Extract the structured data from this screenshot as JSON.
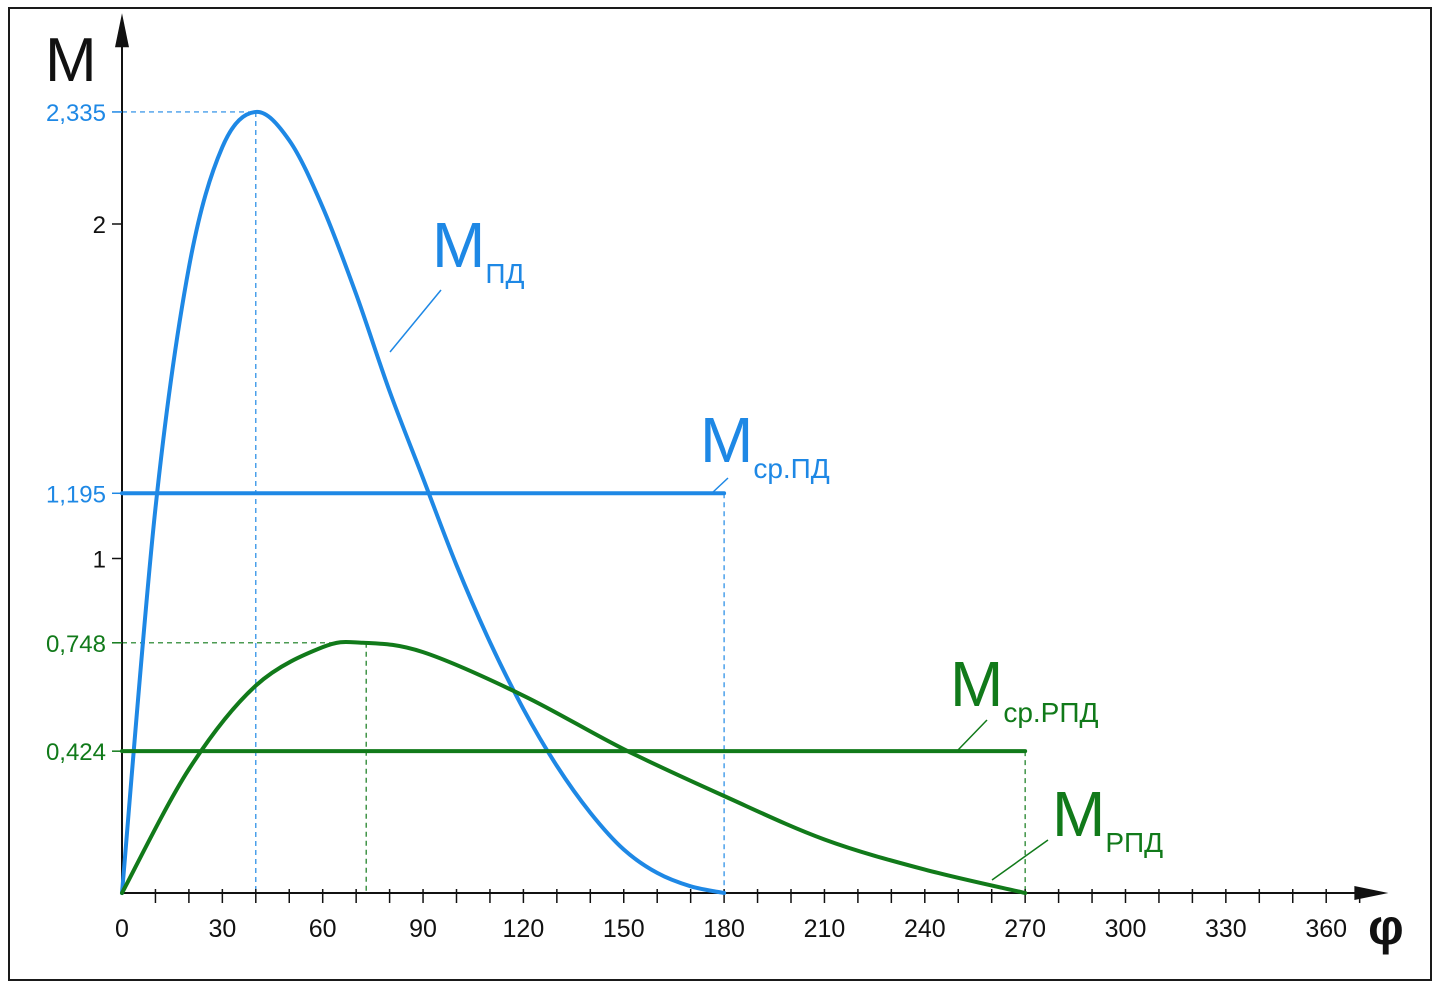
{
  "chart_data": {
    "type": "line",
    "xlabel": "φ",
    "ylabel": "M",
    "xlim": [
      0,
      375
    ],
    "ylim": [
      0,
      2.6
    ],
    "x_ticks": [
      0,
      30,
      60,
      90,
      120,
      150,
      180,
      210,
      240,
      270,
      300,
      330,
      360
    ],
    "x_tick_labels": [
      "0",
      "30",
      "60",
      "90",
      "120",
      "150",
      "180",
      "210",
      "240",
      "270",
      "300",
      "330",
      "360"
    ],
    "y_ticks": [
      1,
      2
    ],
    "y_tick_labels": [
      "1",
      "2"
    ],
    "grid": false,
    "colors": {
      "pd": "#1e88e5",
      "rpd": "#117a1a",
      "axis": "#111111"
    },
    "series": [
      {
        "name": "МПД",
        "label_main": "М",
        "label_sub": "ПД",
        "color": "#1e88e5",
        "x": [
          0,
          10,
          20,
          30,
          40,
          50,
          60,
          70,
          80,
          90,
          100,
          110,
          120,
          130,
          140,
          150,
          160,
          170,
          180
        ],
        "y": [
          0,
          1.15,
          1.87,
          2.23,
          2.335,
          2.25,
          2.05,
          1.79,
          1.5,
          1.24,
          0.98,
          0.75,
          0.55,
          0.38,
          0.24,
          0.13,
          0.06,
          0.02,
          0
        ]
      },
      {
        "name": "МРПД",
        "label_main": "М",
        "label_sub": "РПД",
        "color": "#117a1a",
        "x": [
          0,
          20,
          40,
          60,
          72,
          90,
          120,
          150,
          180,
          210,
          240,
          270
        ],
        "y": [
          0,
          0.37,
          0.62,
          0.735,
          0.748,
          0.72,
          0.59,
          0.43,
          0.29,
          0.16,
          0.07,
          0
        ]
      },
      {
        "name": "Мср.ПД",
        "label_main": "М",
        "label_sub": "ср.ПД",
        "color": "#1e88e5",
        "x": [
          0,
          180
        ],
        "y": [
          1.195,
          1.195
        ]
      },
      {
        "name": "Мср.РПД",
        "label_main": "М",
        "label_sub": "ср.РПД",
        "color": "#117a1a",
        "x": [
          0,
          270
        ],
        "y": [
          0.424,
          0.424
        ]
      }
    ],
    "annotations": [
      {
        "label": "2,335",
        "y": 2.335,
        "x": 40,
        "color": "#1e88e5"
      },
      {
        "label": "1,195",
        "y": 1.195,
        "x": 180,
        "color": "#1e88e5"
      },
      {
        "label": "0,748",
        "y": 0.748,
        "x": 73,
        "color": "#117a1a"
      },
      {
        "label": "0,424",
        "y": 0.424,
        "x": 270,
        "color": "#117a1a"
      }
    ]
  }
}
